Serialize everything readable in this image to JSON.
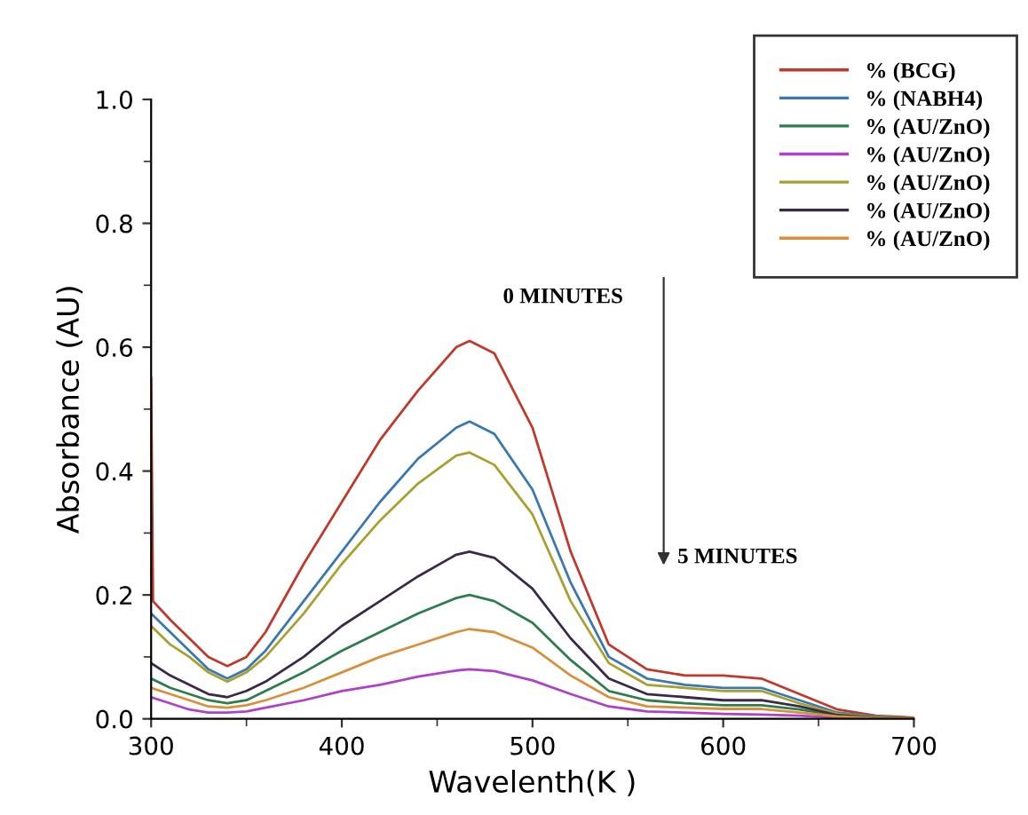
{
  "chart_data": {
    "type": "line",
    "xlabel": "Wavelenth(K )",
    "ylabel": "Absorbance (AU)",
    "x": [
      300,
      310,
      320,
      330,
      340,
      350,
      360,
      380,
      400,
      420,
      440,
      460,
      467,
      480,
      500,
      520,
      540,
      560,
      580,
      600,
      620,
      640,
      660,
      680,
      700
    ],
    "series": [
      {
        "name": "% (BCG)",
        "color": "#c0392b",
        "x": [
          300,
          301,
          310,
          320,
          330,
          340,
          350,
          360,
          380,
          400,
          420,
          440,
          460,
          467,
          480,
          500,
          520,
          540,
          560,
          580,
          600,
          620,
          640,
          660,
          680,
          700
        ],
        "values": [
          0.55,
          0.19,
          0.16,
          0.13,
          0.1,
          0.085,
          0.1,
          0.14,
          0.25,
          0.35,
          0.45,
          0.53,
          0.6,
          0.61,
          0.59,
          0.47,
          0.27,
          0.12,
          0.08,
          0.07,
          0.07,
          0.065,
          0.04,
          0.015,
          0.005,
          0.002
        ]
      },
      {
        "name": "% (NABH4)",
        "color": "#3a78b0",
        "values": [
          0.17,
          0.14,
          0.11,
          0.08,
          0.065,
          0.08,
          0.11,
          0.19,
          0.27,
          0.35,
          0.42,
          0.47,
          0.48,
          0.46,
          0.37,
          0.22,
          0.1,
          0.065,
          0.055,
          0.05,
          0.05,
          0.03,
          0.01,
          0.004,
          0.001
        ]
      },
      {
        "name": "% (AU/ZnO)",
        "color": "#2e7d4f",
        "values": [
          0.065,
          0.05,
          0.04,
          0.03,
          0.025,
          0.03,
          0.045,
          0.075,
          0.11,
          0.14,
          0.17,
          0.195,
          0.2,
          0.19,
          0.155,
          0.095,
          0.045,
          0.03,
          0.025,
          0.022,
          0.022,
          0.015,
          0.005,
          0.002,
          0.001
        ]
      },
      {
        "name": "% (AU/ZnO)",
        "color": "#b040c8",
        "values": [
          0.035,
          0.025,
          0.015,
          0.01,
          0.01,
          0.012,
          0.018,
          0.03,
          0.045,
          0.055,
          0.068,
          0.078,
          0.08,
          0.077,
          0.062,
          0.04,
          0.02,
          0.012,
          0.01,
          0.008,
          0.007,
          0.005,
          0.002,
          0.001,
          0.0
        ]
      },
      {
        "name": "% (AU/ZnO)",
        "color": "#a8a030",
        "values": [
          0.15,
          0.12,
          0.1,
          0.075,
          0.06,
          0.075,
          0.1,
          0.17,
          0.25,
          0.32,
          0.38,
          0.425,
          0.43,
          0.41,
          0.33,
          0.19,
          0.09,
          0.055,
          0.05,
          0.045,
          0.045,
          0.025,
          0.008,
          0.003,
          0.001
        ]
      },
      {
        "name": "% (AU/ZnO)",
        "color": "#3a2a48",
        "values": [
          0.09,
          0.07,
          0.055,
          0.04,
          0.035,
          0.045,
          0.06,
          0.1,
          0.15,
          0.19,
          0.23,
          0.265,
          0.27,
          0.26,
          0.21,
          0.13,
          0.065,
          0.04,
          0.035,
          0.03,
          0.03,
          0.02,
          0.006,
          0.002,
          0.001
        ]
      },
      {
        "name": "% (AU/ZnO)",
        "color": "#d8903a",
        "values": [
          0.05,
          0.04,
          0.03,
          0.02,
          0.018,
          0.022,
          0.03,
          0.05,
          0.075,
          0.1,
          0.12,
          0.14,
          0.145,
          0.14,
          0.115,
          0.07,
          0.035,
          0.02,
          0.018,
          0.016,
          0.016,
          0.01,
          0.004,
          0.001,
          0.001
        ]
      }
    ],
    "xlim": [
      300,
      700
    ],
    "xticks": [
      300,
      400,
      500,
      600,
      700
    ],
    "ylim": [
      0,
      1.0
    ],
    "yticks": [
      {
        "value": 0,
        "label": "0.0"
      },
      {
        "value": 0.2,
        "label": "0.2"
      },
      {
        "value": 0.4,
        "label": "0.4"
      },
      {
        "value": 0.6,
        "label": "0.6"
      },
      {
        "value": 0.8,
        "label": "0.8"
      },
      {
        "value": 1.0,
        "label": "1.0"
      }
    ],
    "grid": false,
    "legend": "top right",
    "marker": "none",
    "line_style": "solid",
    "annotations": [
      "0 MINUTES",
      "5 MINUTES"
    ]
  }
}
